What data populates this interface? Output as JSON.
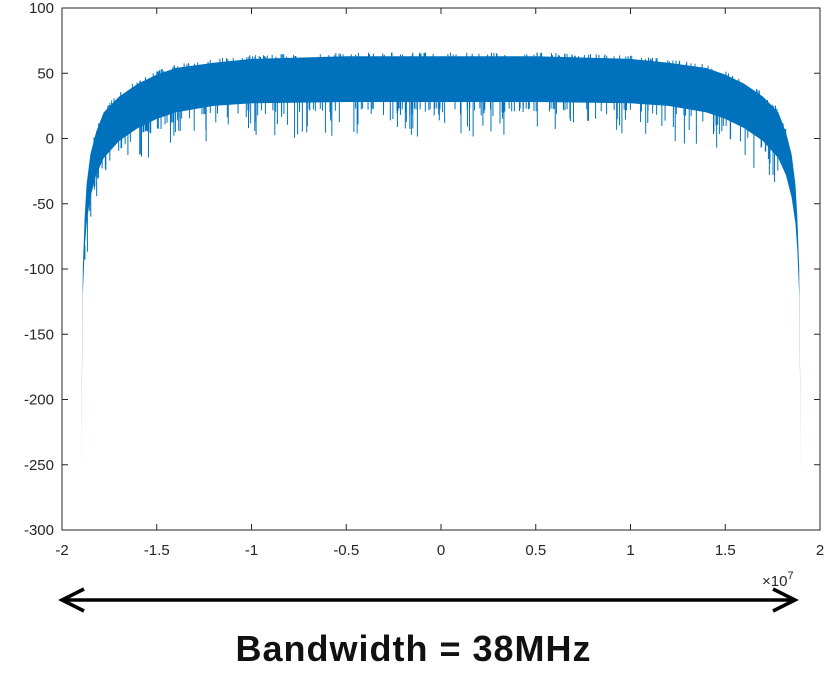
{
  "chart_data": {
    "type": "area",
    "title": "",
    "xlabel": "",
    "ylabel": "",
    "xlim": [
      -2,
      2
    ],
    "ylim": [
      -300,
      100
    ],
    "x_ticks": [
      "-2",
      "-1.5",
      "-1",
      "-0.5",
      "0",
      "0.5",
      "1",
      "1.5",
      "2"
    ],
    "y_ticks": [
      "100",
      "50",
      "0",
      "-50",
      "-100",
      "-150",
      "-200",
      "-250",
      "-300"
    ],
    "x_multiplier": {
      "base": "×10",
      "exponent": "7"
    },
    "grid": false,
    "series": [
      {
        "x": [
          -1.9,
          -1.89,
          -1.88,
          -1.87,
          -1.85,
          -1.82,
          -1.78,
          -1.7,
          -1.6,
          -1.5,
          -1.4,
          -1.2,
          -1.0,
          -0.5,
          0,
          0.5,
          1.0,
          1.2,
          1.4,
          1.5,
          1.6,
          1.7,
          1.78,
          1.82,
          1.85,
          1.87,
          1.88,
          1.89,
          1.9
        ],
        "upper": [
          -260,
          -100,
          -60,
          -35,
          -12,
          5,
          20,
          32,
          42,
          49,
          54,
          58,
          61,
          63,
          63,
          63,
          61,
          58,
          54,
          49,
          42,
          32,
          20,
          5,
          -12,
          -35,
          -60,
          -100,
          -260
        ],
        "lower": [
          -260,
          -120,
          -85,
          -65,
          -45,
          -28,
          -15,
          -2,
          8,
          15,
          20,
          25,
          27,
          28,
          28,
          28,
          27,
          25,
          20,
          15,
          8,
          -2,
          -15,
          -28,
          -45,
          -65,
          -85,
          -120,
          -260
        ],
        "color": "#0072BD"
      }
    ]
  },
  "annotation": {
    "arrow": "double-headed",
    "caption": "Bandwidth = 38MHz"
  }
}
